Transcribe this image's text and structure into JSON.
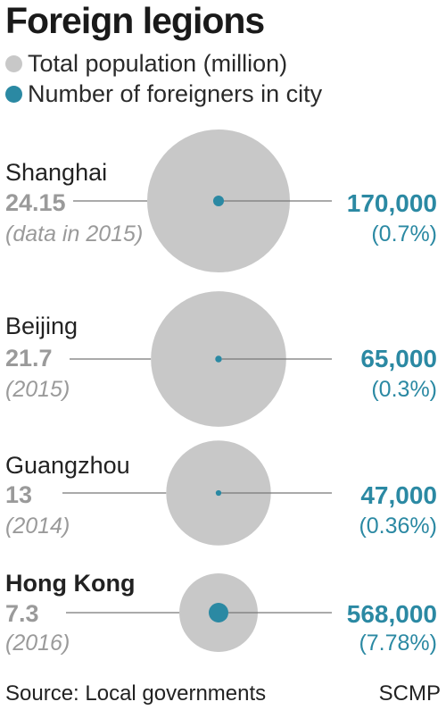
{
  "title": "Foreign legions",
  "legend": [
    {
      "label": "Total population (million)",
      "color": "#c8c8c8"
    },
    {
      "label": "Number of foreigners in city",
      "color": "#2b89a3"
    }
  ],
  "source": "Source: Local governments",
  "credit": "SCMP",
  "chart_data": {
    "type": "bubble",
    "title": "Foreign legions",
    "series": [
      {
        "name": "Total population (million)",
        "color": "#c8c8c8"
      },
      {
        "name": "Number of foreigners in city",
        "color": "#2b89a3"
      }
    ],
    "cities": [
      {
        "name": "Shanghai",
        "population_million": 24.15,
        "population_label": "24.15",
        "year_label": "(data in 2015)",
        "foreigners": 170000,
        "foreigners_label": "170,000",
        "share_label": "(0.7%)",
        "bold": false
      },
      {
        "name": "Beijing",
        "population_million": 21.7,
        "population_label": "21.7",
        "year_label": "(2015)",
        "foreigners": 65000,
        "foreigners_label": "65,000",
        "share_label": "(0.3%)",
        "bold": false
      },
      {
        "name": "Guangzhou",
        "population_million": 13,
        "population_label": "13",
        "year_label": "(2014)",
        "foreigners": 47000,
        "foreigners_label": "47,000",
        "share_label": "(0.36%)",
        "bold": false
      },
      {
        "name": "Hong Kong",
        "population_million": 7.3,
        "population_label": "7.3",
        "year_label": "(2016)",
        "foreigners": 568000,
        "foreigners_label": "568,000",
        "share_label": "(7.78%)",
        "bold": true
      }
    ]
  }
}
